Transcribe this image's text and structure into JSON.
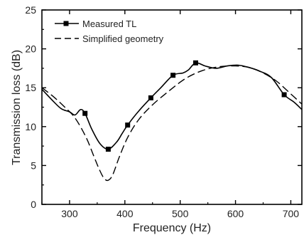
{
  "chart_data": {
    "type": "line",
    "xlabel": "Frequency (Hz)",
    "ylabel": "Transmission loss (dB)",
    "xlim": [
      250,
      720
    ],
    "ylim": [
      0,
      25
    ],
    "xticks": [
      300,
      400,
      500,
      600,
      700
    ],
    "yticks": [
      0,
      5,
      10,
      15,
      20,
      25
    ],
    "xtick_labels": [
      "300",
      "400",
      "500",
      "600",
      "700"
    ],
    "ytick_labels": [
      "0",
      "5",
      "10",
      "15",
      "20",
      "25"
    ],
    "grid": false,
    "legend_position": "top-left",
    "series": [
      {
        "name": "Measured TL",
        "style": "solid",
        "marker": "square",
        "color": "#000000",
        "x": [
          250,
          270,
          285,
          300,
          310,
          320,
          328,
          340,
          355,
          370,
          385,
          395,
          405,
          425,
          447,
          465,
          487,
          505,
          515,
          528,
          545,
          565,
          585,
          605,
          625,
          645,
          665,
          688,
          705,
          720
        ],
        "y": [
          14.8,
          13.3,
          12.3,
          11.9,
          11.5,
          12.2,
          11.7,
          9.7,
          7.8,
          7.1,
          8.0,
          9.1,
          10.2,
          12.0,
          13.7,
          15.0,
          16.6,
          16.9,
          17.3,
          18.2,
          17.8,
          17.5,
          17.8,
          17.9,
          17.6,
          17.1,
          16.3,
          14.1,
          13.2,
          12.2
        ],
        "marker_x": [
          328,
          370,
          405,
          447,
          487,
          528,
          688
        ],
        "marker_y": [
          11.7,
          7.1,
          10.2,
          13.7,
          16.6,
          18.2,
          14.1
        ]
      },
      {
        "name": "Simplified geometry",
        "style": "dashed",
        "color": "#000000",
        "x": [
          250,
          270,
          290,
          310,
          330,
          345,
          355,
          363,
          370,
          378,
          390,
          405,
          425,
          450,
          480,
          510,
          540,
          570,
          600,
          625,
          650,
          675,
          700,
          720
        ],
        "y": [
          15.0,
          13.9,
          12.6,
          11.1,
          8.6,
          6.0,
          4.3,
          3.3,
          3.1,
          3.8,
          6.1,
          8.6,
          10.9,
          12.8,
          14.6,
          16.2,
          17.2,
          17.7,
          17.8,
          17.6,
          16.9,
          15.8,
          14.2,
          12.9
        ]
      }
    ]
  }
}
